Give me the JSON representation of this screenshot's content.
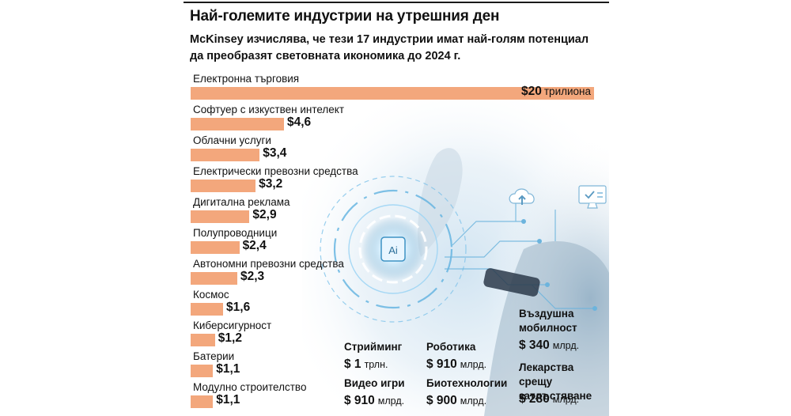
{
  "header": {
    "title": "Най-големите индустрии на утрешния ден",
    "subtitle": "McKinsey изчислява, че тези 17 индустрии имат най-голям потенциал да преобразят световната икономика до 2024 г."
  },
  "chart_data": {
    "type": "bar",
    "orientation": "horizontal",
    "categories": [
      "Електронна търговия",
      "Софтуер с изкуствен интелект",
      "Облачни услуги",
      "Електрически превозни средства",
      "Дигитална реклама",
      "Полупроводници",
      "Автономни превозни средства",
      "Космос",
      "Киберсигурност",
      "Батерии",
      "Модулно строителство"
    ],
    "values": [
      20,
      4.6,
      3.4,
      3.2,
      2.9,
      2.4,
      2.3,
      1.6,
      1.2,
      1.1,
      1.1
    ],
    "value_labels": [
      "$20",
      "$4,6",
      "$3,4",
      "$3,2",
      "$2,9",
      "$2,4",
      "$2,3",
      "$1,6",
      "$1,2",
      "$1,1",
      "$1,1"
    ],
    "unit_label": "трилиона",
    "accent_color": "#f3a77c"
  },
  "extra_industries": [
    {
      "label": "Стрийминг",
      "value": "$ 1",
      "unit": "трлн."
    },
    {
      "label": "Видео игри",
      "value": "$ 910",
      "unit": "млрд."
    },
    {
      "label": "Роботика",
      "value": "$ 910",
      "unit": "млрд."
    },
    {
      "label": "Биотехнологии",
      "value": "$ 900",
      "unit": "млрд."
    },
    {
      "label": "Въздушна мобилност",
      "value": "$ 340",
      "unit": "млрд."
    },
    {
      "label": "Лекарства срещу затлъстяване",
      "value": "$ 280",
      "unit": "млрд."
    }
  ],
  "illustration": {
    "chip_label": "Ai",
    "icons": [
      "cloud-upload-icon",
      "monitor-check-icon"
    ]
  }
}
